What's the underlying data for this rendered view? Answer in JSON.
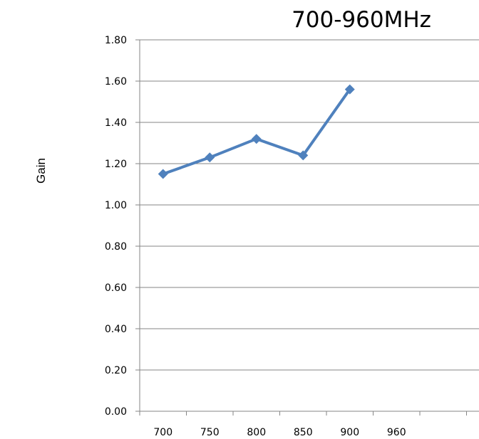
{
  "chart_data": {
    "type": "line",
    "title": "700-960MHz",
    "xlabel": "",
    "ylabel": "Gain",
    "categories": [
      "700",
      "750",
      "800",
      "850",
      "900",
      "960",
      ""
    ],
    "series": [
      {
        "values": [
          1.15,
          1.23,
          1.32,
          1.24,
          1.56,
          null,
          null
        ]
      }
    ],
    "ylim": [
      0,
      1.8
    ],
    "yticks": [
      "0.00",
      "0.20",
      "0.40",
      "0.60",
      "0.80",
      "1.00",
      "1.20",
      "1.40",
      "1.60",
      "1.80"
    ],
    "grid": true,
    "legend": "none",
    "colors": {
      "series": "#4f81bd",
      "grid": "#868686",
      "axis": "#868686",
      "text": "#000000"
    }
  }
}
